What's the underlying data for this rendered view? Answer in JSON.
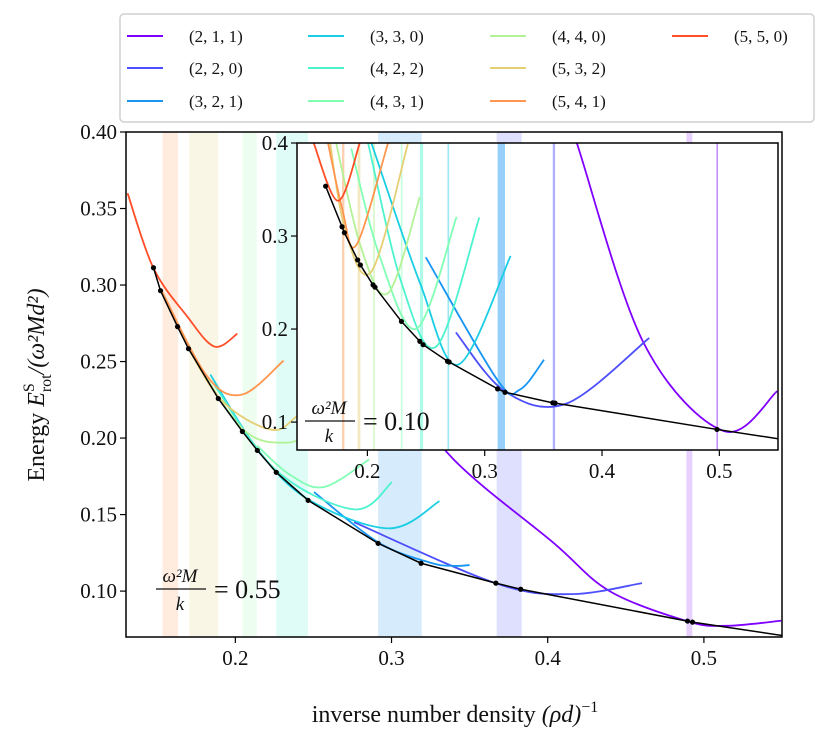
{
  "legend": {
    "placement": "top",
    "entries": [
      {
        "label": "(2, 1, 1)",
        "color": "#8000ff"
      },
      {
        "label": "(2, 2, 0)",
        "color": "#4d4ffc"
      },
      {
        "label": "(3, 2, 1)",
        "color": "#1996f3"
      },
      {
        "label": "(3, 3, 0)",
        "color": "#1acee3"
      },
      {
        "label": "(4, 2, 2)",
        "color": "#4df3ce"
      },
      {
        "label": "(4, 3, 1)",
        "color": "#80ffb4"
      },
      {
        "label": "(4, 4, 0)",
        "color": "#b3f296"
      },
      {
        "label": "(5, 3, 2)",
        "color": "#e6ce74"
      },
      {
        "label": "(5, 4, 1)",
        "color": "#ff964f"
      },
      {
        "label": "(5, 5, 0)",
        "color": "#ff4f28"
      }
    ]
  },
  "chart_data": [
    {
      "type": "line",
      "xlabel": {
        "text": "inverse number density ",
        "math": "(ρd)",
        "sup": "−1"
      },
      "ylabel": {
        "text": "Energy ",
        "symbol": "E",
        "sup": "S",
        "sub": "rot",
        "suffix": "/(ω²Md²)"
      },
      "xlim": [
        0.13,
        0.55
      ],
      "ylim": [
        0.07,
        0.4
      ],
      "xticks": [
        0.2,
        0.3,
        0.4,
        0.5
      ],
      "xticklabels": [
        "0.2",
        "0.3",
        "0.4",
        "0.5"
      ],
      "yticks": [
        0.1,
        0.15,
        0.2,
        0.25,
        0.3,
        0.35,
        0.4
      ],
      "yticklabels": [
        "0.10",
        "0.15",
        "0.20",
        "0.25",
        "0.30",
        "0.35",
        "0.40"
      ],
      "grid": false,
      "annotation": {
        "numerator": "ω²M",
        "denominator": "k",
        "value": "= 0.55"
      },
      "bands": [
        {
          "x": [
            0.1534,
            0.1633
          ],
          "color": "#ff964f"
        },
        {
          "x": [
            0.1705,
            0.189
          ],
          "color": "#e6ce74"
        },
        {
          "x": [
            0.2046,
            0.2137
          ],
          "color": "#9cf6a6"
        },
        {
          "x": [
            0.2262,
            0.2465
          ],
          "color": "#4df3ce"
        },
        {
          "x": [
            0.2914,
            0.3193
          ],
          "color": "#1996f3"
        },
        {
          "x": [
            0.3673,
            0.3833
          ],
          "color": "#4d4ffc"
        },
        {
          "x": [
            0.4888,
            0.4926
          ],
          "color": "#8000ff"
        }
      ],
      "series": [
        {
          "name": "(2, 1, 1)",
          "color": "#8000ff",
          "points": [
            [
              0.3,
              0.24
            ],
            [
              0.3398,
              0.186
            ],
            [
              0.4035,
              0.1317
            ],
            [
              0.4396,
              0.1
            ],
            [
              0.4894,
              0.0803
            ],
            [
              0.514,
              0.0773
            ],
            [
              0.5495,
              0.0806
            ]
          ]
        },
        {
          "name": "(2, 2, 0)",
          "color": "#4d4ffc",
          "points": [
            [
              0.276,
              0.145
            ],
            [
              0.367,
              0.105
            ],
            [
              0.4147,
              0.098
            ],
            [
              0.4604,
              0.1052
            ]
          ]
        },
        {
          "name": "(3, 2, 1)",
          "color": "#1996f3",
          "points": [
            [
              0.2504,
              0.1647
            ],
            [
              0.2914,
              0.1319
            ],
            [
              0.325,
              0.1185
            ],
            [
              0.34,
              0.1165
            ],
            [
              0.35,
              0.117
            ]
          ]
        },
        {
          "name": "(3, 3, 0)",
          "color": "#1acee3",
          "points": [
            [
              0.184,
              0.2415
            ],
            [
              0.214,
              0.193
            ],
            [
              0.2465,
              0.16
            ],
            [
              0.2983,
              0.141
            ],
            [
              0.3307,
              0.1588
            ]
          ]
        },
        {
          "name": "(4, 2, 2)",
          "color": "#4df3ce",
          "points": [
            [
              0.187,
              0.234
            ],
            [
              0.226,
              0.179
            ],
            [
              0.276,
              0.1534
            ],
            [
              0.3003,
              0.1712
            ]
          ]
        },
        {
          "name": "(4, 3, 1)",
          "color": "#80ffb4",
          "points": [
            [
              0.2139,
              0.195
            ],
            [
              0.235,
              0.176
            ],
            [
              0.2567,
              0.168
            ],
            [
              0.2856,
              0.186
            ]
          ]
        },
        {
          "name": "(4, 4, 0)",
          "color": "#b3f296",
          "points": [
            [
              0.17,
              0.258
            ],
            [
              0.2047,
              0.206
            ],
            [
              0.233,
              0.197
            ],
            [
              0.252,
              0.206
            ]
          ]
        },
        {
          "name": "(5, 3, 2)",
          "color": "#e6ce74",
          "points": [
            [
              0.163,
              0.2726
            ],
            [
              0.19,
              0.226
            ],
            [
              0.2224,
              0.2056
            ],
            [
              0.2394,
              0.2143
            ],
            [
              0.26,
              0.235
            ]
          ]
        },
        {
          "name": "(5, 4, 1)",
          "color": "#ff964f",
          "points": [
            [
              0.153,
              0.296
            ],
            [
              0.1819,
              0.2404
            ],
            [
              0.2043,
              0.2284
            ],
            [
              0.2309,
              0.2506
            ]
          ]
        },
        {
          "name": "(5, 5, 0)",
          "color": "#ff4f28",
          "points": [
            [
              0.131,
              0.36
            ],
            [
              0.1476,
              0.311
            ],
            [
              0.1693,
              0.2793
            ],
            [
              0.1866,
              0.2598
            ],
            [
              0.2013,
              0.2682
            ]
          ]
        }
      ],
      "envelope": {
        "color": "#000000",
        "points": [
          [
            0.1476,
            0.3113
          ],
          [
            0.1521,
            0.2963
          ],
          [
            0.163,
            0.2728
          ],
          [
            0.17,
            0.2584
          ],
          [
            0.1891,
            0.2258
          ],
          [
            0.2045,
            0.2043
          ],
          [
            0.2141,
            0.1919
          ],
          [
            0.2262,
            0.1776
          ],
          [
            0.2466,
            0.1593
          ],
          [
            0.2914,
            0.1312
          ],
          [
            0.3189,
            0.1182
          ],
          [
            0.3668,
            0.1052
          ],
          [
            0.3827,
            0.1012
          ],
          [
            0.4895,
            0.0804
          ],
          [
            0.4927,
            0.0797
          ]
        ],
        "tail": [
          0.55,
          0.071
        ]
      }
    },
    {
      "type": "line",
      "inset": true,
      "xlim": [
        0.14,
        0.55
      ],
      "ylim": [
        0.07,
        0.4
      ],
      "xticks": [
        0.2,
        0.3,
        0.4,
        0.5
      ],
      "xticklabels": [
        "0.2",
        "0.3",
        "0.4",
        "0.5"
      ],
      "yticks": [
        0.1,
        0.2,
        0.3,
        0.4
      ],
      "yticklabels": [
        "0.1",
        "0.2",
        "0.3",
        "0.4"
      ],
      "grid": false,
      "annotation": {
        "numerator": "ω²M",
        "denominator": "k",
        "value": "= 0.10"
      },
      "bands": [
        {
          "x": [
            0.1784,
            0.1804
          ],
          "color": "#ff964f"
        },
        {
          "x": [
            0.1917,
            0.194
          ],
          "color": "#e6ce74"
        },
        {
          "x": [
            0.2048,
            0.2065
          ],
          "color": "#b3f296"
        },
        {
          "x": [
            0.2285,
            0.2295
          ],
          "color": "#80ffb4"
        },
        {
          "x": [
            0.2447,
            0.2475
          ],
          "color": "#4df3ce"
        },
        {
          "x": [
            0.2683,
            0.2697
          ],
          "color": "#1acee3"
        },
        {
          "x": [
            0.311,
            0.3173
          ],
          "color": "#1996f3"
        },
        {
          "x": [
            0.358,
            0.36
          ],
          "color": "#4d4ffc"
        },
        {
          "x": [
            0.4975,
            0.4985
          ],
          "color": "#8000ff"
        }
      ],
      "series": [
        {
          "name": "(2, 1, 1)",
          "color": "#8000ff",
          "points": [
            [
              0.372,
              0.42
            ],
            [
              0.3785,
              0.4
            ],
            [
              0.4355,
              0.185
            ],
            [
              0.5037,
              0.0904
            ],
            [
              0.5493,
              0.1332
            ]
          ]
        },
        {
          "name": "(2, 2, 0)",
          "color": "#4d4ffc",
          "points": [
            [
              0.2754,
              0.1964
            ],
            [
              0.3173,
              0.133
            ],
            [
              0.3698,
              0.12
            ],
            [
              0.4402,
              0.1904
            ]
          ]
        },
        {
          "name": "(3, 2, 1)",
          "color": "#1996f3",
          "points": [
            [
              0.2498,
              0.2771
            ],
            [
              0.311,
              0.145
            ],
            [
              0.3301,
              0.135
            ],
            [
              0.3506,
              0.1671
            ]
          ]
        },
        {
          "name": "(3, 3, 0)",
          "color": "#1acee3",
          "points": [
            [
              0.2034,
              0.4
            ],
            [
              0.2447,
              0.25
            ],
            [
              0.2774,
              0.1618
            ],
            [
              0.3221,
              0.2786
            ]
          ]
        },
        {
          "name": "(4, 2, 2)",
          "color": "#4df3ce",
          "points": [
            [
              0.2006,
              0.4
            ],
            [
              0.229,
              0.25
            ],
            [
              0.2589,
              0.1814
            ],
            [
              0.2954,
              0.32
            ]
          ]
        },
        {
          "name": "(4, 3, 1)",
          "color": "#80ffb4",
          "points": [
            [
              0.1863,
              0.394
            ],
            [
              0.21,
              0.28
            ],
            [
              0.2419,
              0.2004
            ],
            [
              0.276,
              0.3207
            ]
          ]
        },
        {
          "name": "(4, 4, 0)",
          "color": "#b3f296",
          "points": [
            [
              0.17,
              0.42
            ],
            [
              0.194,
              0.29
            ],
            [
              0.2176,
              0.2386
            ],
            [
              0.2447,
              0.3421
            ]
          ]
        },
        {
          "name": "(5, 3, 2)",
          "color": "#e6ce74",
          "points": [
            [
              0.165,
              0.43
            ],
            [
              0.1804,
              0.31
            ],
            [
              0.2034,
              0.2618
            ],
            [
              0.2347,
              0.4
            ]
          ]
        },
        {
          "name": "(5, 4, 1)",
          "color": "#ff964f",
          "points": [
            [
              0.16,
              0.44
            ],
            [
              0.1784,
              0.33
            ],
            [
              0.1906,
              0.2904
            ],
            [
              0.2176,
              0.4
            ]
          ]
        },
        {
          "name": "(5, 5, 0)",
          "color": "#ff4f28",
          "points": [
            [
              0.1542,
              0.4
            ],
            [
              0.175,
              0.3379
            ],
            [
              0.1935,
              0.4
            ]
          ]
        }
      ],
      "envelope": {
        "color": "#000000",
        "points": [
          [
            0.1644,
            0.3536
          ],
          [
            0.1784,
            0.31
          ],
          [
            0.1804,
            0.3036
          ],
          [
            0.1917,
            0.2743
          ],
          [
            0.194,
            0.2689
          ],
          [
            0.2048,
            0.2475
          ],
          [
            0.2065,
            0.245
          ],
          [
            0.229,
            0.2082
          ],
          [
            0.2447,
            0.1868
          ],
          [
            0.2475,
            0.1832
          ],
          [
            0.2683,
            0.1654
          ],
          [
            0.2697,
            0.1646
          ],
          [
            0.311,
            0.1357
          ],
          [
            0.3173,
            0.1321
          ],
          [
            0.358,
            0.1207
          ],
          [
            0.36,
            0.1204
          ],
          [
            0.498,
            0.0921
          ]
        ],
        "tail": [
          0.55,
          0.0821
        ]
      }
    }
  ]
}
